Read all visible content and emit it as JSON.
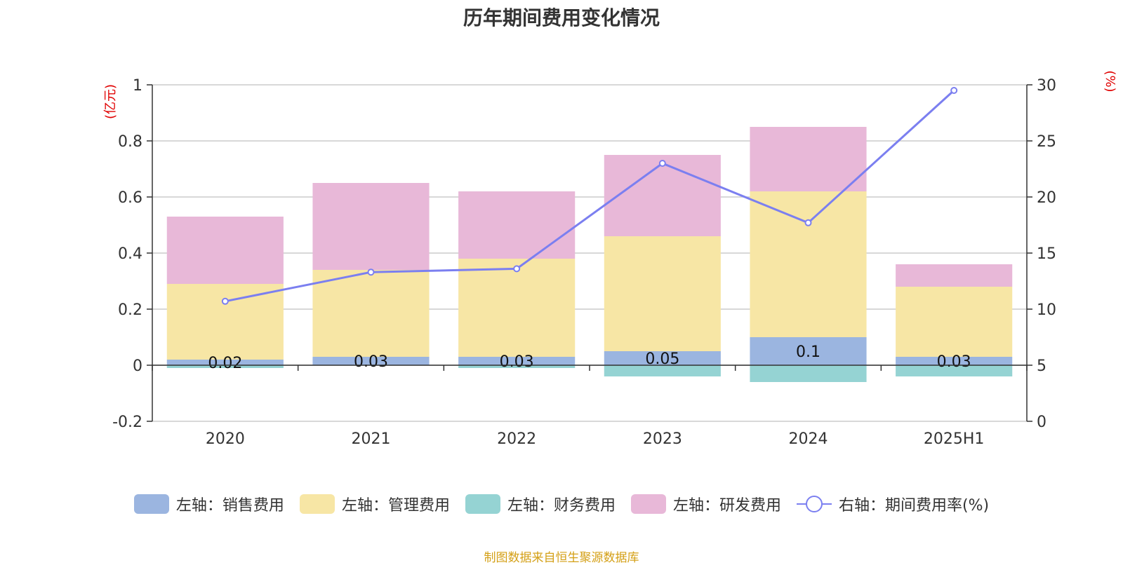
{
  "title": "历年期间费用变化情况",
  "source_note": "制图数据来自恒生聚源数据库",
  "legend": [
    {
      "label": "左轴：销售费用",
      "color": "#9bb5e0",
      "kind": "bar"
    },
    {
      "label": "左轴：管理费用",
      "color": "#f7e6a5",
      "kind": "bar"
    },
    {
      "label": "左轴：财务费用",
      "color": "#95d3d3",
      "kind": "bar"
    },
    {
      "label": "左轴：研发费用",
      "color": "#e8b8d8",
      "kind": "bar"
    },
    {
      "label": "右轴：期间费用率(%)",
      "color": "#7b7ff0",
      "kind": "line"
    }
  ],
  "chart_data": {
    "type": "bar",
    "title": "历年期间费用变化情况",
    "categories": [
      "2020",
      "2021",
      "2022",
      "2023",
      "2024",
      "2025H1"
    ],
    "ylabel_left": "(亿元)",
    "ylabel_right": "(%)",
    "ylim_left": [
      -0.2,
      1
    ],
    "ylim_right": [
      0,
      30
    ],
    "yticks_left": [
      "1",
      "0.8",
      "0.6",
      "0.4",
      "0.2",
      "0",
      "-0.2"
    ],
    "yticks_right": [
      "30",
      "25",
      "20",
      "15",
      "10",
      "5",
      "0"
    ],
    "grid": true,
    "legend_position": "bottom",
    "series": [
      {
        "name": "左轴：销售费用",
        "axis": "left",
        "color": "#9bb5e0",
        "values": [
          0.02,
          0.03,
          0.03,
          0.05,
          0.1,
          0.03
        ],
        "data_labels": [
          "0.02",
          "0.03",
          "0.03",
          "0.05",
          "0.1",
          "0.03"
        ]
      },
      {
        "name": "左轴：管理费用",
        "axis": "left",
        "color": "#f7e6a5",
        "values": [
          0.27,
          0.31,
          0.35,
          0.41,
          0.52,
          0.25
        ]
      },
      {
        "name": "左轴：财务费用",
        "axis": "left",
        "color": "#95d3d3",
        "values": [
          -0.01,
          0.0,
          -0.01,
          -0.04,
          -0.06,
          -0.04
        ]
      },
      {
        "name": "左轴：研发费用",
        "axis": "left",
        "color": "#e8b8d8",
        "values": [
          0.24,
          0.31,
          0.24,
          0.29,
          0.23,
          0.08
        ]
      },
      {
        "name": "右轴：期间费用率(%)",
        "axis": "right",
        "type": "line",
        "color": "#7b7ff0",
        "values": [
          10.7,
          13.3,
          13.6,
          23.0,
          17.7,
          29.5
        ]
      }
    ]
  }
}
